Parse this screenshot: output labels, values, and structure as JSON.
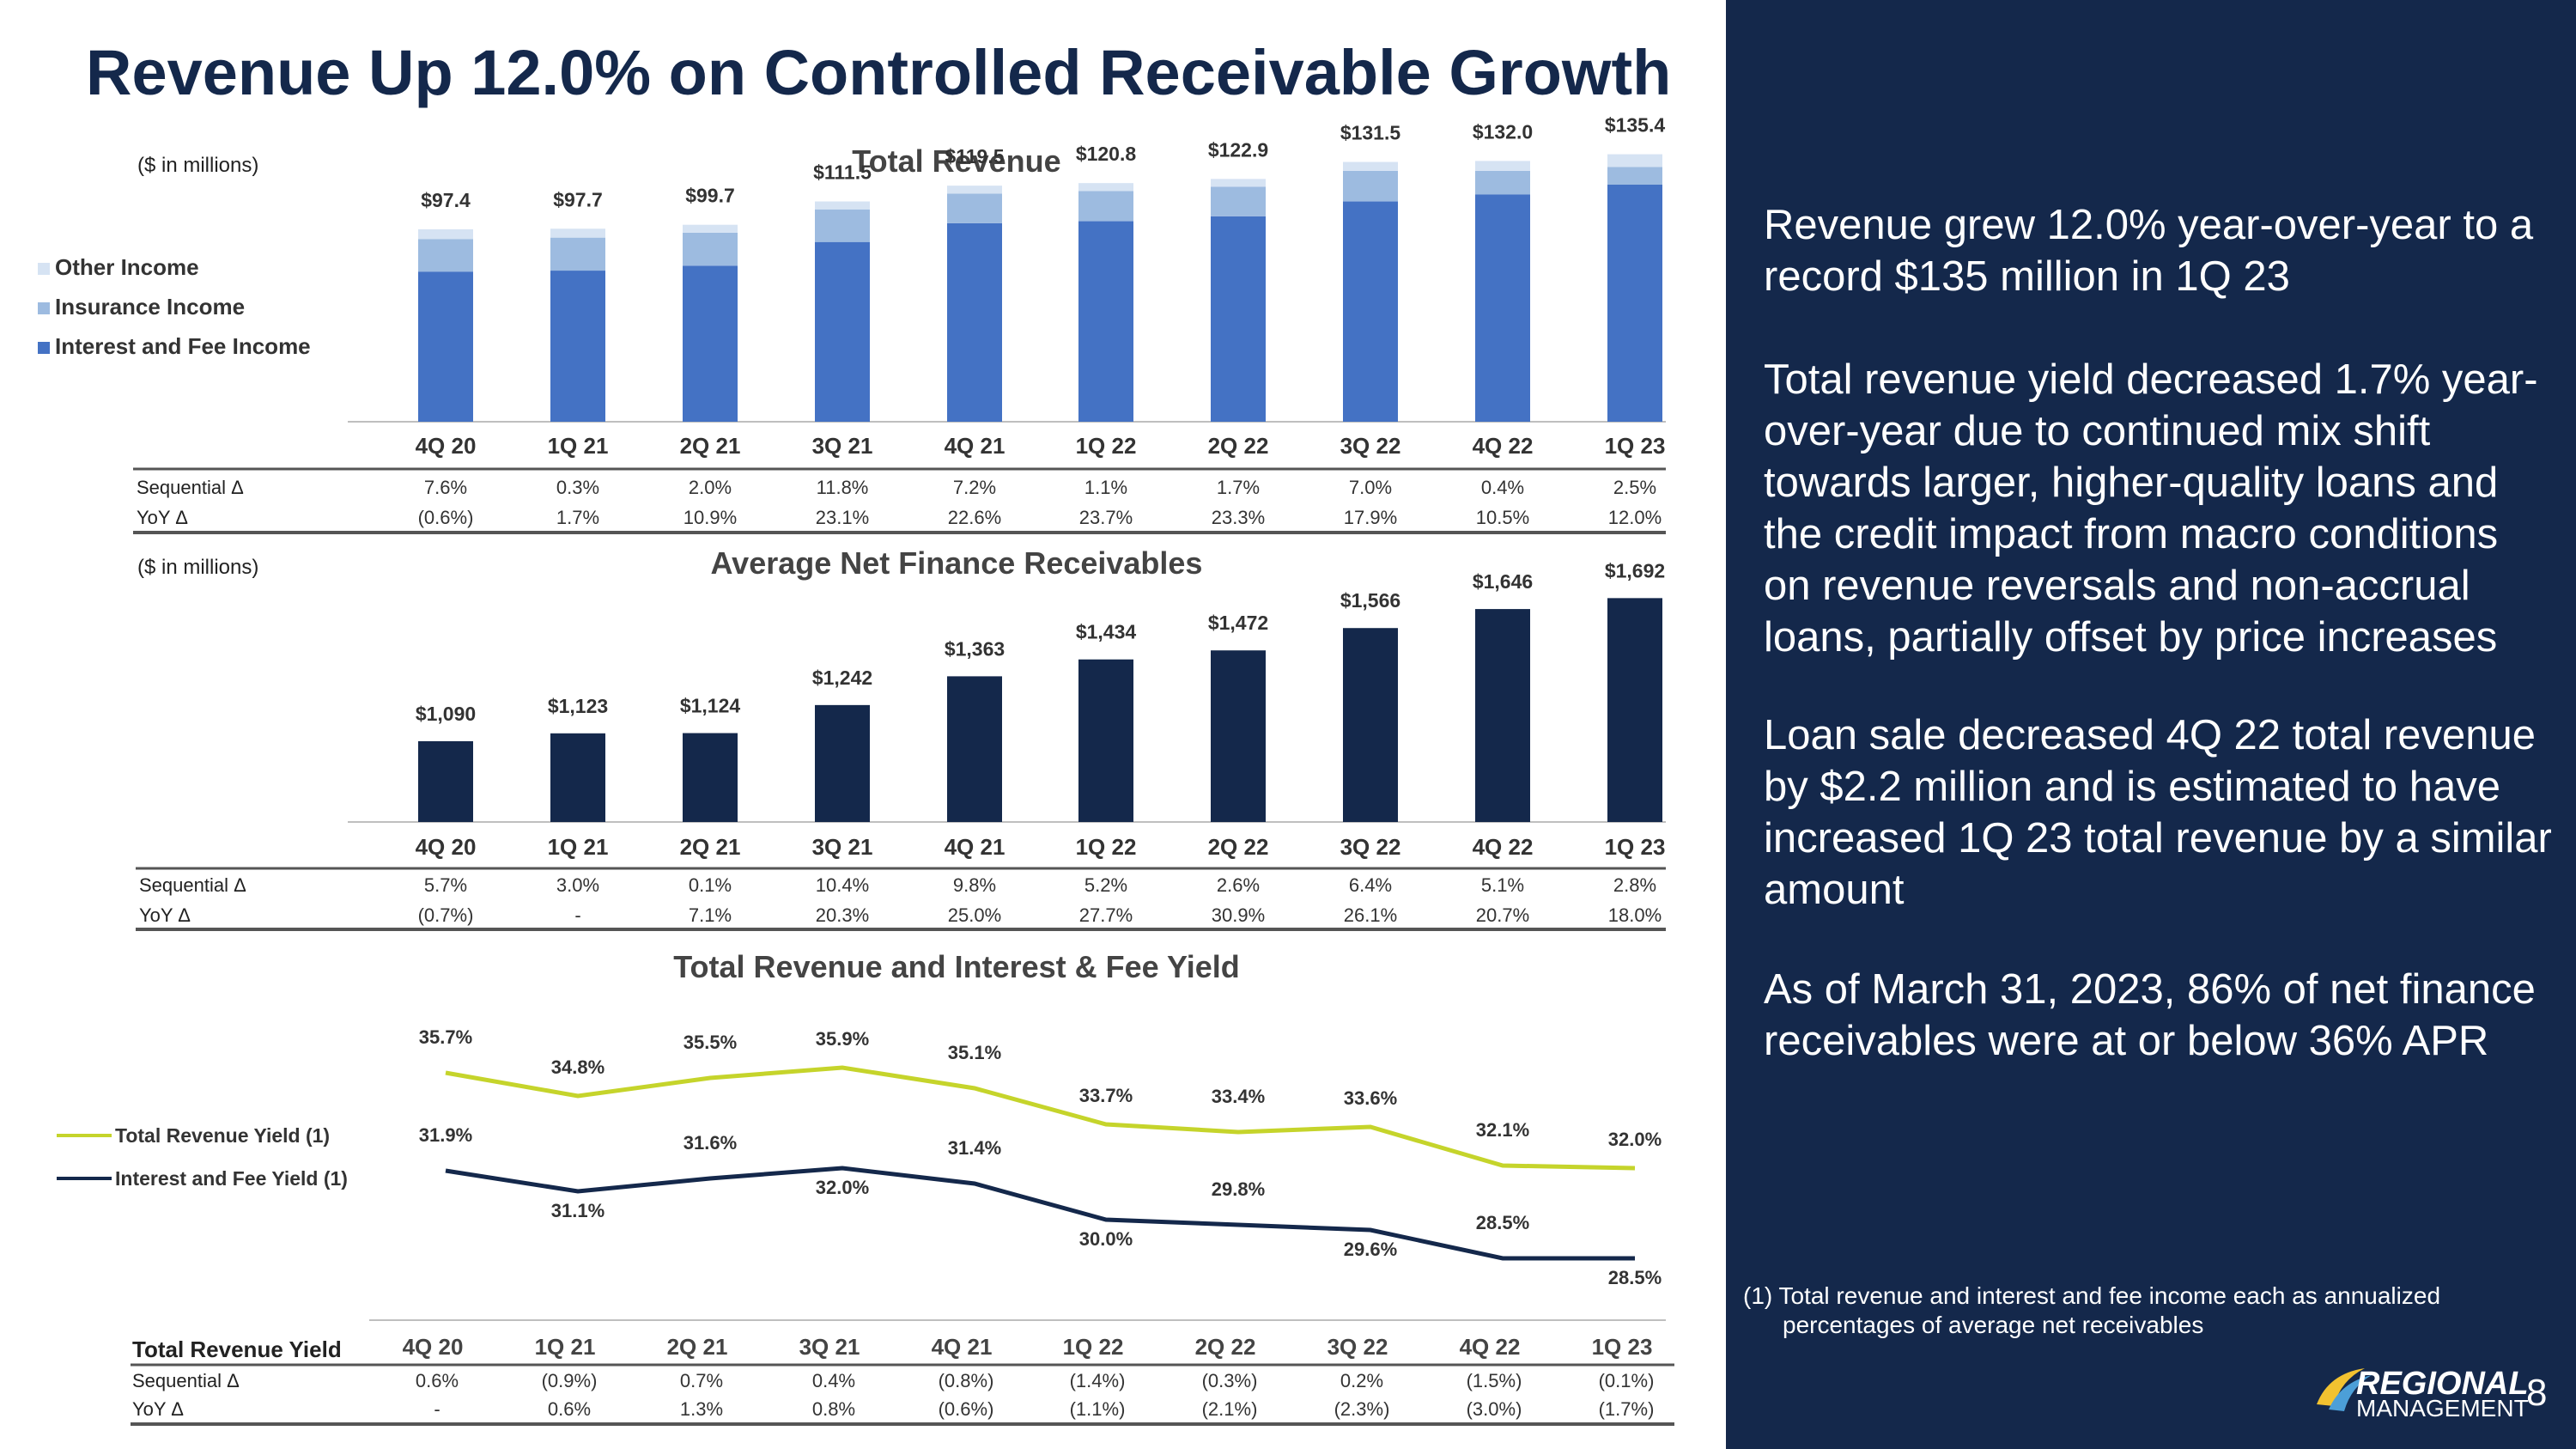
{
  "title": "Revenue Up 12.0% on Controlled Receivable Growth",
  "page_number": "8",
  "logo": {
    "line1": "REGIONAL",
    "line2": "MANAGEMENT"
  },
  "colors": {
    "navy": "#14284b",
    "interest": "#4472c4",
    "insurance": "#9dbbe0",
    "other": "#d6e3f3",
    "yield_line": "#c5d42b",
    "fee_line": "#14284b"
  },
  "right_panel": {
    "bullets": [
      "Revenue grew 12.0% year-over-year to a record $135 million in 1Q 23",
      "Total revenue yield decreased 1.7% year-over-year due to continued mix shift towards larger, higher-quality loans and the credit impact from macro conditions on revenue reversals and non-accrual loans, partially offset by price increases",
      "Loan sale decreased 4Q 22 total revenue by $2.2 million and is estimated to have increased 1Q 23 total revenue by a similar amount",
      "As of March 31, 2023, 86% of net finance receivables were at or below 36% APR"
    ],
    "footnote_line1": "(1) Total revenue and interest and fee income each as annualized",
    "footnote_line2": "percentages of average net receivables"
  },
  "chart_data": [
    {
      "type": "bar",
      "stacked": true,
      "title": "Total Revenue",
      "unit_note": "($ in millions)",
      "categories": [
        "4Q 20",
        "1Q 21",
        "2Q 21",
        "3Q 21",
        "4Q 21",
        "1Q 22",
        "2Q 22",
        "3Q 22",
        "4Q 22",
        "1Q 23"
      ],
      "totals": [
        97.4,
        97.7,
        99.7,
        111.5,
        119.5,
        120.8,
        122.9,
        131.5,
        132.0,
        135.4
      ],
      "total_labels": [
        "$97.4",
        "$97.7",
        "$99.7",
        "$111.5",
        "$119.5",
        "$120.8",
        "$122.9",
        "$131.5",
        "$132.0",
        "$135.4"
      ],
      "series": [
        {
          "name": "Interest and Fee Income",
          "values": [
            76.0,
            76.5,
            79.0,
            91.0,
            100.5,
            101.5,
            104.0,
            111.5,
            115.0,
            120.0
          ]
        },
        {
          "name": "Insurance Income",
          "values": [
            16.5,
            16.7,
            16.7,
            16.5,
            15.0,
            15.3,
            15.0,
            15.5,
            12.0,
            9.0
          ]
        },
        {
          "name": "Other Income",
          "values": [
            4.9,
            4.5,
            4.0,
            4.0,
            4.0,
            4.0,
            3.9,
            4.5,
            5.0,
            6.4
          ]
        }
      ],
      "legend_order": [
        "Other Income",
        "Insurance Income",
        "Interest and Fee Income"
      ],
      "ylim": [
        0,
        150
      ],
      "table": [
        {
          "label": "Sequential Δ",
          "values": [
            "7.6%",
            "0.3%",
            "2.0%",
            "11.8%",
            "7.2%",
            "1.1%",
            "1.7%",
            "7.0%",
            "0.4%",
            "2.5%"
          ]
        },
        {
          "label": "YoY Δ",
          "values": [
            "(0.6%)",
            "1.7%",
            "10.9%",
            "23.1%",
            "22.6%",
            "23.7%",
            "23.3%",
            "17.9%",
            "10.5%",
            "12.0%"
          ]
        }
      ]
    },
    {
      "type": "bar",
      "title": "Average Net Finance Receivables",
      "unit_note": "($ in millions)",
      "categories": [
        "4Q 20",
        "1Q 21",
        "2Q 21",
        "3Q 21",
        "4Q 21",
        "1Q 22",
        "2Q 22",
        "3Q 22",
        "4Q 22",
        "1Q 23"
      ],
      "values": [
        1090,
        1123,
        1124,
        1242,
        1363,
        1434,
        1472,
        1566,
        1646,
        1692
      ],
      "value_labels": [
        "$1,090",
        "$1,123",
        "$1,124",
        "$1,242",
        "$1,363",
        "$1,434",
        "$1,472",
        "$1,566",
        "$1,646",
        "$1,692"
      ],
      "ylim": [
        750,
        1750
      ],
      "table": [
        {
          "label": "Sequential Δ",
          "values": [
            "5.7%",
            "3.0%",
            "0.1%",
            "10.4%",
            "9.8%",
            "5.2%",
            "2.6%",
            "6.4%",
            "5.1%",
            "2.8%"
          ]
        },
        {
          "label": "YoY Δ",
          "values": [
            "(0.7%)",
            "-",
            "7.1%",
            "20.3%",
            "25.0%",
            "27.7%",
            "30.9%",
            "26.1%",
            "20.7%",
            "18.0%"
          ]
        }
      ]
    },
    {
      "type": "line",
      "title": "Total Revenue and Interest & Fee Yield",
      "categories": [
        "4Q 20",
        "1Q 21",
        "2Q 21",
        "3Q 21",
        "4Q 21",
        "1Q 22",
        "2Q 22",
        "3Q 22",
        "4Q 22",
        "1Q 23"
      ],
      "series": [
        {
          "name": "Total Revenue Yield (1)",
          "values": [
            35.7,
            34.8,
            35.5,
            35.9,
            35.1,
            33.7,
            33.4,
            33.6,
            32.1,
            32.0
          ],
          "labels": [
            "35.7%",
            "34.8%",
            "35.5%",
            "35.9%",
            "35.1%",
            "33.7%",
            "33.4%",
            "33.6%",
            "32.1%",
            "32.0%"
          ]
        },
        {
          "name": "Interest and Fee Yield (1)",
          "values": [
            31.9,
            31.1,
            31.6,
            32.0,
            31.4,
            30.0,
            29.8,
            29.6,
            28.5,
            28.5
          ],
          "labels": [
            "31.9%",
            "31.1%",
            "31.6%",
            "32.0%",
            "31.4%",
            "30.0%",
            "29.8%",
            "29.6%",
            "28.5%",
            "28.5%"
          ]
        }
      ],
      "table_title": "Total Revenue Yield",
      "table": [
        {
          "label": "Sequential Δ",
          "values": [
            "0.6%",
            "(0.9%)",
            "0.7%",
            "0.4%",
            "(0.8%)",
            "(1.4%)",
            "(0.3%)",
            "0.2%",
            "(1.5%)",
            "(0.1%)"
          ]
        },
        {
          "label": "YoY Δ",
          "values": [
            "-",
            "0.6%",
            "1.3%",
            "0.8%",
            "(0.6%)",
            "(1.1%)",
            "(2.1%)",
            "(2.3%)",
            "(3.0%)",
            "(1.7%)"
          ]
        }
      ]
    }
  ]
}
